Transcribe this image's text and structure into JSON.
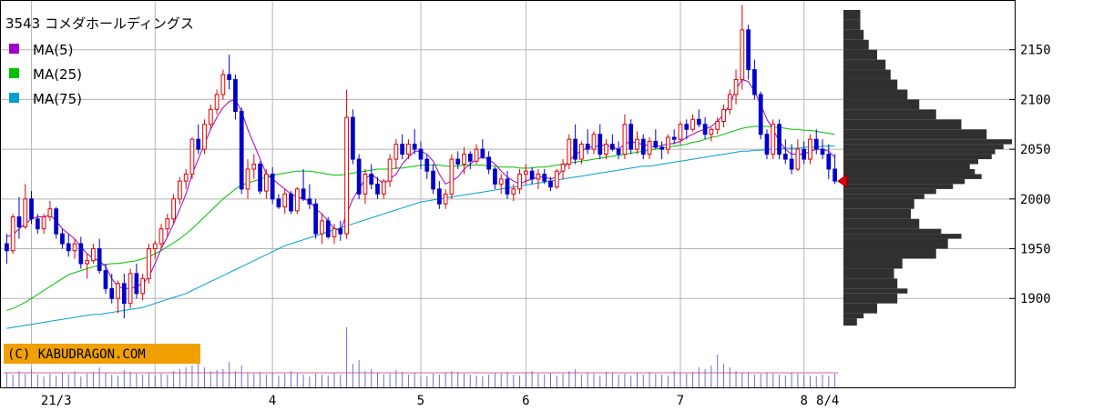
{
  "chart_data": {
    "type": "candlestick",
    "title": "3543 コメダホールディングス",
    "watermark": "(C) KABUDRAGON.COM",
    "legend": [
      {
        "name": "MA(5)",
        "color": "#a000c8"
      },
      {
        "name": "MA(25)",
        "color": "#00c000"
      },
      {
        "name": "MA(75)",
        "color": "#00a0d0"
      }
    ],
    "y_axis": {
      "range": [
        1860,
        2200
      ],
      "ticks": [
        1900,
        1950,
        2000,
        2050,
        2100,
        2150
      ],
      "position": "right"
    },
    "x_axis": {
      "labels": [
        "21/3",
        "4",
        "5",
        "6",
        "7",
        "8",
        "8/4"
      ]
    },
    "current_price": 2018,
    "colors": {
      "up": "#e00000",
      "down": "#0000cc",
      "grid": "#b4b4b4",
      "profile": "#303030",
      "watermark_bg": "#f0a000",
      "volume": "#7070c8"
    },
    "ohlc": [
      [
        1955,
        1965,
        1935,
        1948
      ],
      [
        1948,
        1985,
        1945,
        1982
      ],
      [
        1982,
        2002,
        1960,
        1972
      ],
      [
        1972,
        2015,
        1970,
        2000
      ],
      [
        2000,
        2008,
        1975,
        1980
      ],
      [
        1980,
        1985,
        1965,
        1970
      ],
      [
        1970,
        1985,
        1965,
        1982
      ],
      [
        1982,
        1998,
        1978,
        1990
      ],
      [
        1990,
        1992,
        1960,
        1965
      ],
      [
        1965,
        1970,
        1950,
        1955
      ],
      [
        1955,
        1965,
        1942,
        1948
      ],
      [
        1948,
        1960,
        1940,
        1955
      ],
      [
        1955,
        1962,
        1930,
        1935
      ],
      [
        1935,
        1945,
        1920,
        1938
      ],
      [
        1938,
        1955,
        1935,
        1950
      ],
      [
        1950,
        1960,
        1925,
        1928
      ],
      [
        1928,
        1935,
        1905,
        1910
      ],
      [
        1910,
        1925,
        1895,
        1900
      ],
      [
        1900,
        1918,
        1885,
        1915
      ],
      [
        1915,
        1925,
        1880,
        1895
      ],
      [
        1895,
        1930,
        1890,
        1925
      ],
      [
        1925,
        1935,
        1900,
        1905
      ],
      [
        1905,
        1925,
        1898,
        1920
      ],
      [
        1920,
        1955,
        1915,
        1950
      ],
      [
        1950,
        1958,
        1940,
        1955
      ],
      [
        1955,
        1975,
        1950,
        1970
      ],
      [
        1970,
        1985,
        1962,
        1980
      ],
      [
        1980,
        2005,
        1975,
        2000
      ],
      [
        2000,
        2022,
        1995,
        2018
      ],
      [
        2018,
        2030,
        2010,
        2025
      ],
      [
        2025,
        2062,
        2020,
        2060
      ],
      [
        2060,
        2075,
        2045,
        2050
      ],
      [
        2050,
        2080,
        2045,
        2075
      ],
      [
        2075,
        2095,
        2070,
        2090
      ],
      [
        2090,
        2110,
        2085,
        2105
      ],
      [
        2105,
        2130,
        2100,
        2125
      ],
      [
        2125,
        2145,
        2110,
        2120
      ],
      [
        2120,
        2125,
        2080,
        2088
      ],
      [
        2088,
        2092,
        2005,
        2010
      ],
      [
        2010,
        2040,
        2000,
        2030
      ],
      [
        2030,
        2045,
        2020,
        2035
      ],
      [
        2035,
        2038,
        2005,
        2008
      ],
      [
        2008,
        2030,
        2000,
        2025
      ],
      [
        2025,
        2032,
        1995,
        2000
      ],
      [
        2000,
        2005,
        1990,
        1992
      ],
      [
        1992,
        2010,
        1985,
        2005
      ],
      [
        2005,
        2008,
        1985,
        1988
      ],
      [
        1988,
        2012,
        1985,
        2010
      ],
      [
        2010,
        2030,
        1998,
        2000
      ],
      [
        2000,
        2015,
        1990,
        1995
      ],
      [
        1995,
        2000,
        1960,
        1965
      ],
      [
        1965,
        1985,
        1955,
        1978
      ],
      [
        1978,
        1982,
        1960,
        1962
      ],
      [
        1962,
        1975,
        1955,
        1970
      ],
      [
        1970,
        1978,
        1958,
        1965
      ],
      [
        1965,
        2110,
        1960,
        2082
      ],
      [
        2082,
        2090,
        2035,
        2040
      ],
      [
        2040,
        2045,
        2000,
        2005
      ],
      [
        2005,
        2030,
        1995,
        2025
      ],
      [
        2025,
        2035,
        2010,
        2015
      ],
      [
        2015,
        2022,
        2000,
        2005
      ],
      [
        2005,
        2020,
        2000,
        2018
      ],
      [
        2018,
        2045,
        2012,
        2040
      ],
      [
        2040,
        2060,
        2030,
        2055
      ],
      [
        2055,
        2065,
        2040,
        2045
      ],
      [
        2045,
        2060,
        2040,
        2055
      ],
      [
        2055,
        2070,
        2045,
        2050
      ],
      [
        2050,
        2058,
        2030,
        2040
      ],
      [
        2040,
        2045,
        2020,
        2028
      ],
      [
        2028,
        2035,
        2005,
        2010
      ],
      [
        2010,
        2018,
        1990,
        1995
      ],
      [
        1995,
        2010,
        1990,
        2005
      ],
      [
        2005,
        2045,
        2000,
        2040
      ],
      [
        2040,
        2048,
        2030,
        2035
      ],
      [
        2035,
        2052,
        2025,
        2045
      ],
      [
        2045,
        2048,
        2030,
        2038
      ],
      [
        2038,
        2055,
        2035,
        2050
      ],
      [
        2050,
        2060,
        2040,
        2042
      ],
      [
        2042,
        2048,
        2025,
        2030
      ],
      [
        2030,
        2032,
        2010,
        2015
      ],
      [
        2015,
        2025,
        2005,
        2020
      ],
      [
        2020,
        2028,
        2000,
        2005
      ],
      [
        2005,
        2015,
        1998,
        2010
      ],
      [
        2010,
        2030,
        2005,
        2025
      ],
      [
        2025,
        2035,
        2015,
        2028
      ],
      [
        2028,
        2032,
        2015,
        2020
      ],
      [
        2020,
        2030,
        2010,
        2025
      ],
      [
        2025,
        2030,
        2015,
        2018
      ],
      [
        2018,
        2022,
        2008,
        2012
      ],
      [
        2012,
        2030,
        2010,
        2028
      ],
      [
        2028,
        2040,
        2020,
        2035
      ],
      [
        2035,
        2065,
        2030,
        2060
      ],
      [
        2060,
        2075,
        2035,
        2040
      ],
      [
        2040,
        2058,
        2035,
        2055
      ],
      [
        2055,
        2070,
        2045,
        2050
      ],
      [
        2050,
        2068,
        2045,
        2065
      ],
      [
        2065,
        2075,
        2040,
        2045
      ],
      [
        2045,
        2060,
        2040,
        2055
      ],
      [
        2055,
        2065,
        2048,
        2050
      ],
      [
        2050,
        2058,
        2040,
        2045
      ],
      [
        2045,
        2085,
        2040,
        2075
      ],
      [
        2075,
        2080,
        2045,
        2050
      ],
      [
        2050,
        2068,
        2045,
        2060
      ],
      [
        2060,
        2065,
        2040,
        2045
      ],
      [
        2045,
        2062,
        2040,
        2058
      ],
      [
        2058,
        2070,
        2050,
        2052
      ],
      [
        2052,
        2058,
        2040,
        2050
      ],
      [
        2050,
        2065,
        2045,
        2062
      ],
      [
        2062,
        2070,
        2055,
        2060
      ],
      [
        2060,
        2078,
        2055,
        2075
      ],
      [
        2075,
        2080,
        2060,
        2070
      ],
      [
        2070,
        2085,
        2068,
        2080
      ],
      [
        2080,
        2090,
        2072,
        2075
      ],
      [
        2075,
        2082,
        2060,
        2065
      ],
      [
        2065,
        2072,
        2058,
        2070
      ],
      [
        2070,
        2082,
        2065,
        2078
      ],
      [
        2078,
        2095,
        2072,
        2090
      ],
      [
        2090,
        2110,
        2085,
        2105
      ],
      [
        2105,
        2130,
        2095,
        2120
      ],
      [
        2120,
        2195,
        2110,
        2170
      ],
      [
        2170,
        2175,
        2120,
        2130
      ],
      [
        2130,
        2140,
        2100,
        2105
      ],
      [
        2105,
        2108,
        2060,
        2065
      ],
      [
        2065,
        2070,
        2040,
        2045
      ],
      [
        2045,
        2080,
        2040,
        2075
      ],
      [
        2075,
        2080,
        2040,
        2045
      ],
      [
        2045,
        2060,
        2035,
        2040
      ],
      [
        2040,
        2055,
        2025,
        2030
      ],
      [
        2030,
        2060,
        2028,
        2050
      ],
      [
        2050,
        2058,
        2035,
        2040
      ],
      [
        2040,
        2065,
        2035,
        2060
      ],
      [
        2060,
        2070,
        2045,
        2050
      ],
      [
        2050,
        2060,
        2040,
        2045
      ],
      [
        2045,
        2055,
        2020,
        2030
      ],
      [
        2030,
        2045,
        2015,
        2018
      ]
    ],
    "ma5": [
      1962,
      1964,
      1970,
      1975,
      1980,
      1982,
      1982,
      1984,
      1978,
      1970,
      1965,
      1960,
      1952,
      1945,
      1940,
      1938,
      1932,
      1920,
      1912,
      1910,
      1910,
      1912,
      1915,
      1922,
      1935,
      1950,
      1962,
      1975,
      1990,
      2005,
      2025,
      2040,
      2055,
      2070,
      2082,
      2092,
      2098,
      2100,
      2088,
      2070,
      2055,
      2040,
      2025,
      2020,
      2015,
      2010,
      2005,
      2002,
      2000,
      1998,
      1990,
      1985,
      1978,
      1970,
      1968,
      1985,
      2000,
      2010,
      2020,
      2025,
      2020,
      2015,
      2020,
      2025,
      2035,
      2042,
      2048,
      2048,
      2045,
      2038,
      2025,
      2015,
      2018,
      2022,
      2030,
      2035,
      2040,
      2042,
      2040,
      2035,
      2028,
      2022,
      2018,
      2015,
      2018,
      2020,
      2022,
      2022,
      2020,
      2022,
      2030,
      2038,
      2045,
      2048,
      2052,
      2052,
      2054,
      2054,
      2052,
      2050,
      2055,
      2058,
      2056,
      2055,
      2053,
      2052,
      2054,
      2055,
      2056,
      2058,
      2062,
      2065,
      2068,
      2070,
      2073,
      2078,
      2085,
      2095,
      2110,
      2120,
      2118,
      2108,
      2095,
      2080,
      2070,
      2058,
      2050,
      2045,
      2045,
      2045,
      2048,
      2050,
      2050,
      2048,
      2042
    ],
    "ma25": [
      1888,
      1890,
      1893,
      1896,
      1900,
      1904,
      1908,
      1912,
      1916,
      1920,
      1924,
      1926,
      1928,
      1930,
      1932,
      1933,
      1934,
      1935,
      1935,
      1936,
      1937,
      1938,
      1940,
      1942,
      1945,
      1948,
      1952,
      1956,
      1960,
      1965,
      1970,
      1976,
      1982,
      1988,
      1994,
      2000,
      2005,
      2010,
      2014,
      2016,
      2018,
      2020,
      2022,
      2024,
      2025,
      2026,
      2027,
      2028,
      2028,
      2028,
      2027,
      2026,
      2025,
      2024,
      2024,
      2025,
      2026,
      2027,
      2028,
      2029,
      2030,
      2030,
      2030,
      2031,
      2031,
      2032,
      2033,
      2034,
      2034,
      2034,
      2034,
      2033,
      2033,
      2033,
      2034,
      2034,
      2034,
      2034,
      2033,
      2033,
      2032,
      2032,
      2032,
      2031,
      2031,
      2031,
      2032,
      2032,
      2033,
      2034,
      2035,
      2036,
      2037,
      2038,
      2039,
      2040,
      2041,
      2042,
      2043,
      2044,
      2045,
      2046,
      2047,
      2048,
      2049,
      2050,
      2051,
      2052,
      2053,
      2054,
      2055,
      2057,
      2058,
      2060,
      2062,
      2063,
      2065,
      2067,
      2069,
      2071,
      2072,
      2073,
      2073,
      2073,
      2072,
      2072,
      2071,
      2070,
      2070,
      2069,
      2069,
      2068,
      2067,
      2066,
      2065
    ],
    "ma75": [
      1870,
      1871,
      1872,
      1873,
      1874,
      1875,
      1876,
      1877,
      1878,
      1879,
      1880,
      1881,
      1882,
      1883,
      1884,
      1884,
      1885,
      1886,
      1887,
      1888,
      1889,
      1890,
      1891,
      1893,
      1895,
      1897,
      1899,
      1901,
      1903,
      1905,
      1908,
      1911,
      1914,
      1917,
      1920,
      1923,
      1926,
      1929,
      1932,
      1935,
      1938,
      1941,
      1944,
      1947,
      1950,
      1953,
      1955,
      1957,
      1959,
      1961,
      1963,
      1965,
      1967,
      1969,
      1971,
      1973,
      1975,
      1977,
      1979,
      1981,
      1983,
      1985,
      1987,
      1989,
      1991,
      1993,
      1995,
      1997,
      1998,
      1999,
      2000,
      2001,
      2002,
      2003,
      2004,
      2005,
      2006,
      2007,
      2008,
      2009,
      2010,
      2011,
      2012,
      2013,
      2014,
      2015,
      2016,
      2017,
      2018,
      2019,
      2020,
      2021,
      2022,
      2023,
      2024,
      2025,
      2026,
      2027,
      2028,
      2029,
      2030,
      2031,
      2032,
      2033,
      2033,
      2034,
      2035,
      2036,
      2037,
      2038,
      2039,
      2040,
      2041,
      2042,
      2043,
      2044,
      2045,
      2046,
      2047,
      2048,
      2048,
      2049,
      2049,
      2050,
      2050,
      2050,
      2051,
      2051,
      2051,
      2052,
      2052,
      2052,
      2053,
      2053,
      2053
    ],
    "volume": [
      16,
      14,
      18,
      15,
      20,
      14,
      12,
      15,
      13,
      16,
      14,
      18,
      12,
      15,
      17,
      22,
      16,
      14,
      13,
      19,
      17,
      15,
      14,
      16,
      13,
      15,
      14,
      18,
      20,
      22,
      24,
      30,
      22,
      18,
      19,
      20,
      28,
      18,
      24,
      16,
      15,
      17,
      14,
      16,
      13,
      15,
      18,
      16,
      14,
      12,
      15,
      14,
      13,
      16,
      14,
      66,
      26,
      30,
      18,
      20,
      16,
      14,
      15,
      19,
      17,
      14,
      16,
      13,
      12,
      15,
      14,
      16,
      18,
      17,
      15,
      14,
      13,
      12,
      14,
      16,
      15,
      17,
      14,
      13,
      16,
      18,
      15,
      14,
      16,
      13,
      15,
      18,
      20,
      14,
      16,
      15,
      13,
      17,
      16,
      14,
      15,
      13,
      16,
      14,
      17,
      15,
      14,
      13,
      18,
      16,
      15,
      17,
      22,
      20,
      24,
      36,
      26,
      22,
      18,
      16,
      17,
      14,
      15,
      16,
      15,
      14,
      13,
      16,
      15,
      14,
      13,
      12,
      14,
      13,
      15
    ],
    "volume_profile": [
      [
        2190,
        0.1
      ],
      [
        2180,
        0.1
      ],
      [
        2170,
        0.12
      ],
      [
        2160,
        0.15
      ],
      [
        2150,
        0.2
      ],
      [
        2140,
        0.25
      ],
      [
        2130,
        0.28
      ],
      [
        2120,
        0.32
      ],
      [
        2110,
        0.38
      ],
      [
        2100,
        0.45
      ],
      [
        2090,
        0.55
      ],
      [
        2080,
        0.7
      ],
      [
        2070,
        0.85
      ],
      [
        2060,
        1.0
      ],
      [
        2055,
        0.95
      ],
      [
        2050,
        0.9
      ],
      [
        2045,
        0.88
      ],
      [
        2040,
        0.8
      ],
      [
        2035,
        0.75
      ],
      [
        2030,
        0.78
      ],
      [
        2025,
        0.82
      ],
      [
        2020,
        0.72
      ],
      [
        2015,
        0.65
      ],
      [
        2010,
        0.55
      ],
      [
        2005,
        0.48
      ],
      [
        2000,
        0.42
      ],
      [
        1990,
        0.4
      ],
      [
        1980,
        0.45
      ],
      [
        1970,
        0.58
      ],
      [
        1965,
        0.7
      ],
      [
        1960,
        0.62
      ],
      [
        1950,
        0.55
      ],
      [
        1940,
        0.35
      ],
      [
        1930,
        0.3
      ],
      [
        1920,
        0.32
      ],
      [
        1910,
        0.38
      ],
      [
        1905,
        0.32
      ],
      [
        1895,
        0.2
      ],
      [
        1885,
        0.12
      ],
      [
        1880,
        0.08
      ]
    ]
  }
}
